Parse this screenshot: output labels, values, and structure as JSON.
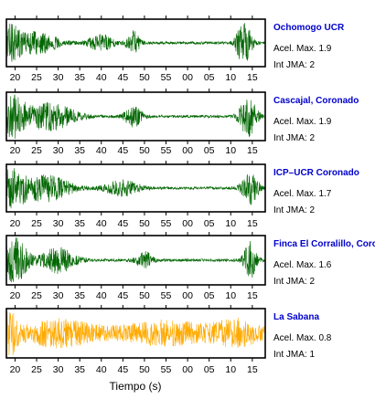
{
  "chart_data": {
    "type": "line",
    "xlabel": "Tiempo (s)",
    "tick_labels": [
      "20",
      "25",
      "30",
      "35",
      "40",
      "45",
      "50",
      "55",
      "00",
      "05",
      "10",
      "15"
    ],
    "x_tick_values": [
      20,
      25,
      30,
      35,
      40,
      45,
      50,
      55,
      60,
      65,
      70,
      75
    ],
    "xlim": [
      18,
      78
    ],
    "name_color": "#0000cc",
    "panels": [
      {
        "name": "Ochomogo UCR",
        "acel": "Acel. Max. 1.9",
        "jma": "Int JMA: 2",
        "color": "#006600",
        "amplitude": 1.9,
        "bursts": [
          {
            "t": 19.0,
            "a": 1.0,
            "w": 2.0
          },
          {
            "t": 25.0,
            "a": 0.5,
            "w": 5.0
          },
          {
            "t": 40.0,
            "a": 0.35,
            "w": 3.0
          },
          {
            "t": 47.5,
            "a": 0.55,
            "w": 1.5
          },
          {
            "t": 73.0,
            "a": 1.0,
            "w": 1.8
          }
        ]
      },
      {
        "name": "Cascajal, Coronado",
        "acel": "Acel. Max. 1.9",
        "jma": "Int JMA: 2",
        "color": "#006600",
        "amplitude": 1.9,
        "bursts": [
          {
            "t": 19.5,
            "a": 0.9,
            "w": 3.0
          },
          {
            "t": 28.0,
            "a": 0.6,
            "w": 6.0
          },
          {
            "t": 47.5,
            "a": 0.5,
            "w": 2.0
          },
          {
            "t": 74.0,
            "a": 0.95,
            "w": 2.0
          }
        ]
      },
      {
        "name": "ICP–UCR Coronado",
        "acel": "Acel. Max. 1.7",
        "jma": "Int JMA: 2",
        "color": "#006600",
        "amplitude": 1.7,
        "bursts": [
          {
            "t": 19.0,
            "a": 1.0,
            "w": 3.0
          },
          {
            "t": 27.0,
            "a": 0.6,
            "w": 6.0
          },
          {
            "t": 45.0,
            "a": 0.35,
            "w": 4.0
          },
          {
            "t": 74.5,
            "a": 0.7,
            "w": 2.0
          }
        ]
      },
      {
        "name": "Finca El Corralillo, Corona",
        "acel": "Acel. Max. 1.6",
        "jma": "Int JMA: 2",
        "color": "#006600",
        "amplitude": 1.6,
        "bursts": [
          {
            "t": 20.0,
            "a": 1.0,
            "w": 3.0
          },
          {
            "t": 30.0,
            "a": 0.55,
            "w": 4.0
          },
          {
            "t": 50.0,
            "a": 0.35,
            "w": 2.0
          },
          {
            "t": 74.5,
            "a": 0.8,
            "w": 1.5
          }
        ]
      },
      {
        "name": "La Sabana",
        "acel": "Acel. Max. 0.8",
        "jma": "Int JMA: 1",
        "color": "#ffaa00",
        "amplitude": 0.8,
        "bursts": [
          {
            "t": 19.0,
            "a": 1.0,
            "w": 1.5
          },
          {
            "t": 30.0,
            "a": 0.6,
            "w": 10.0
          },
          {
            "t": 55.0,
            "a": 0.55,
            "w": 12.0
          },
          {
            "t": 72.0,
            "a": 0.55,
            "w": 6.0
          }
        ]
      }
    ]
  }
}
